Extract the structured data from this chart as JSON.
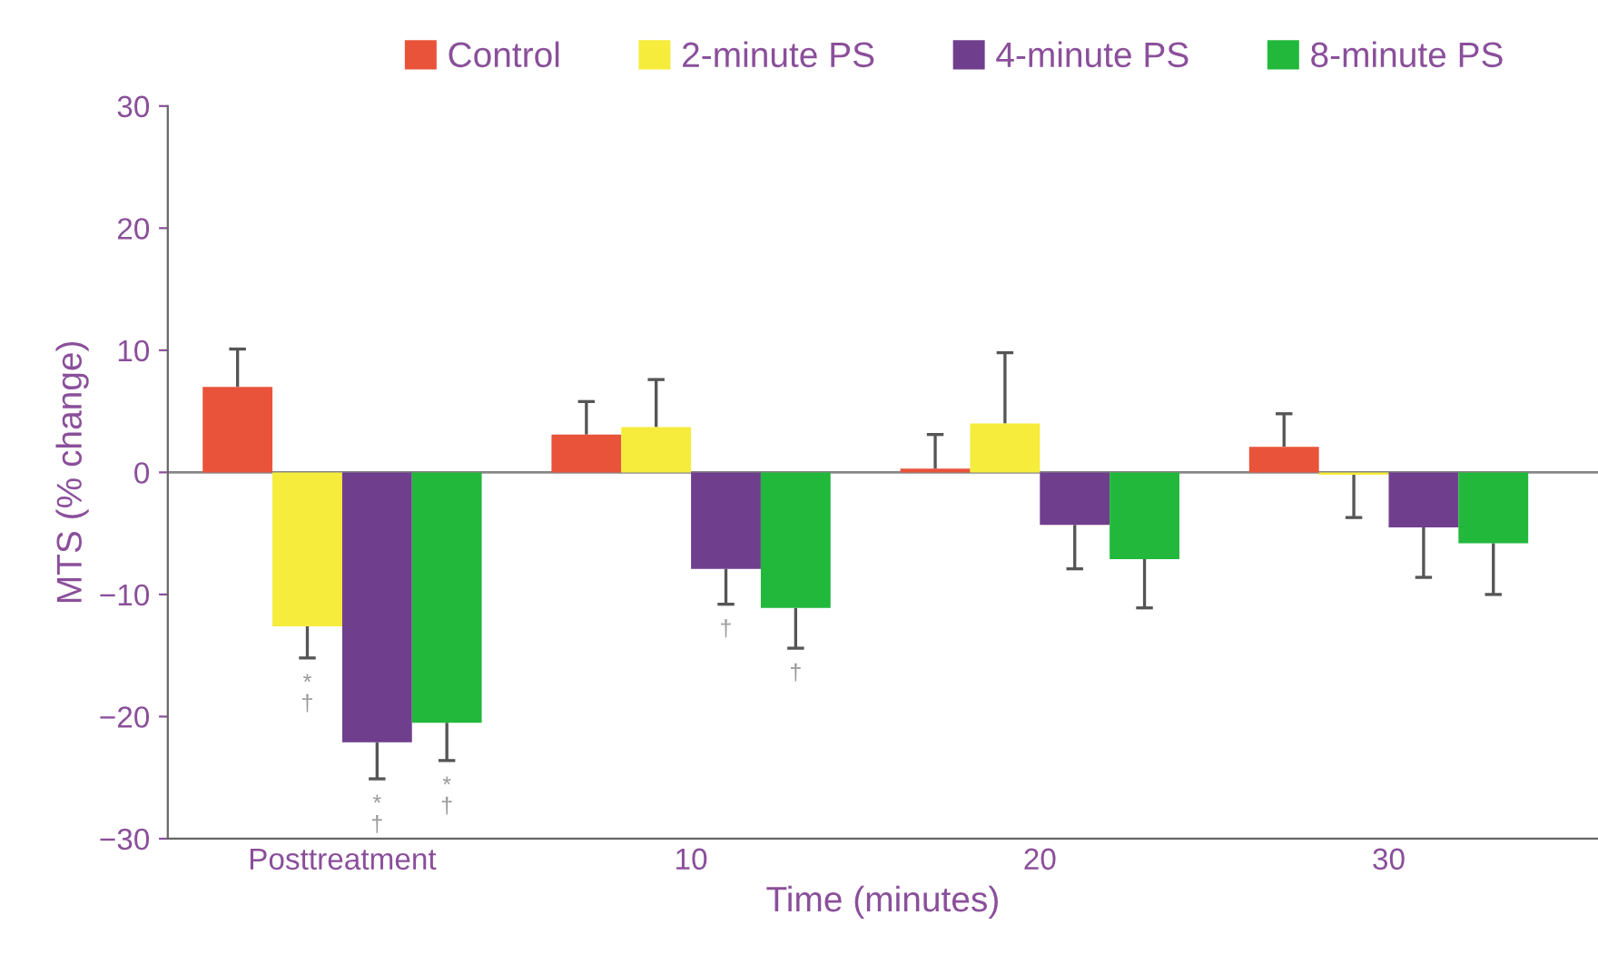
{
  "chart_data": {
    "type": "bar",
    "xlabel": "Time (minutes)",
    "ylabel": "MTS (% change)",
    "categories": [
      "Posttreatment",
      "10",
      "20",
      "30"
    ],
    "series": [
      {
        "name": "Control",
        "color": "#e8533a",
        "values": [
          7.0,
          3.1,
          0.3,
          2.1
        ],
        "errors": [
          [
            7.0,
            10.1
          ],
          [
            3.1,
            5.8
          ],
          [
            0.3,
            3.1
          ],
          [
            2.1,
            4.8
          ]
        ]
      },
      {
        "name": "2-minute PS",
        "color": "#f5ec3c",
        "values": [
          -12.6,
          3.7,
          4.0,
          -0.2
        ],
        "errors": [
          [
            -15.2,
            -12.6
          ],
          [
            3.7,
            7.6
          ],
          [
            4.0,
            9.8
          ],
          [
            -3.7,
            -0.2
          ]
        ]
      },
      {
        "name": "4-minute PS",
        "color": "#6f3f8e",
        "values": [
          -22.1,
          -7.9,
          -4.3,
          -4.5
        ],
        "errors": [
          [
            -25.1,
            -22.1
          ],
          [
            -10.8,
            -7.9
          ],
          [
            -7.9,
            -4.3
          ],
          [
            -8.6,
            -4.5
          ]
        ]
      },
      {
        "name": "8-minute PS",
        "color": "#22b83c",
        "values": [
          -20.5,
          -11.1,
          -7.1,
          -5.8
        ],
        "errors": [
          [
            -23.6,
            -20.5
          ],
          [
            -14.4,
            -11.1
          ],
          [
            -11.1,
            -7.1
          ],
          [
            -10.0,
            -5.8
          ]
        ]
      }
    ],
    "ylim": [
      -30,
      30
    ],
    "yticks": [
      -30,
      -20,
      -10,
      0,
      10,
      20,
      30
    ],
    "ref_lines": [
      {
        "axis": "y",
        "value": 0,
        "color": "#888888"
      }
    ],
    "annotations": [
      "*\n†",
      "*\n†",
      "*\n†",
      "†",
      "†"
    ],
    "legend": "top",
    "grid": false
  }
}
